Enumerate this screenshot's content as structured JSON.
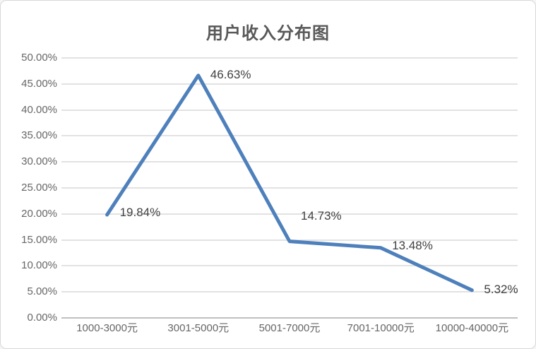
{
  "chart_data": {
    "type": "line",
    "title": "用户收入分布图",
    "categories": [
      "1000-3000元",
      "3001-5000元",
      "5001-7000元",
      "7001-10000元",
      "10000-40000元"
    ],
    "values": [
      19.84,
      46.63,
      14.73,
      13.48,
      5.32
    ],
    "data_labels": [
      "19.84%",
      "46.63%",
      "14.73%",
      "13.48%",
      "5.32%"
    ],
    "xlabel": "",
    "ylabel": "",
    "ylim": [
      0,
      50
    ],
    "ytick_step": 5,
    "ytick_labels": [
      "0.00%",
      "5.00%",
      "10.00%",
      "15.00%",
      "20.00%",
      "25.00%",
      "30.00%",
      "35.00%",
      "40.00%",
      "45.00%",
      "50.00%"
    ],
    "grid": "horizontal",
    "legend": "none",
    "markers": "none",
    "colors": {
      "line": "#4E80BC",
      "title_text": "#595959",
      "axis_text": "#666666",
      "data_label_text": "#404040",
      "gridline": "#E2E2E2",
      "axis_line": "#BFBFBF",
      "card_border": "#D8D8D8",
      "background": "#FFFFFF"
    }
  }
}
